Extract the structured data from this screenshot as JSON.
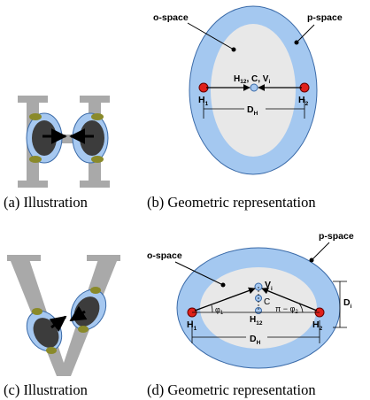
{
  "panels": {
    "a": {
      "caption": "(a) Illustration"
    },
    "b": {
      "caption": "(b) Geometric representation",
      "o_space": "o-space",
      "p_space": "p-space",
      "h1": "H",
      "h1_sub": "1",
      "h2": "H",
      "h2_sub": "2",
      "center_main": "H",
      "center_sub": "12",
      "center_rest": ", C, V",
      "center_rest_sub": "i",
      "dh": "D",
      "dh_sub": "H"
    },
    "c": {
      "caption": "(c) Illustration"
    },
    "d": {
      "caption": "(d) Geometric representation",
      "o_space": "o-space",
      "p_space": "p-space",
      "vi": "V",
      "vi_sub": "i",
      "c": "C",
      "h12": "H",
      "h12_sub": "12",
      "h1": "H",
      "h1_sub": "1",
      "h2": "H",
      "h2_sub": "2",
      "phi1": "φ",
      "phi1_sub": "1",
      "pi_minus_phi2": "π − φ",
      "pi_minus_phi2_sub": "2",
      "di": "D",
      "di_sub": "i",
      "dh": "D",
      "dh_sub": "H"
    }
  },
  "colors": {
    "p_space": "#a4c8f0",
    "p_space_stroke": "#3a6aa8",
    "o_space": "#e8e8e8",
    "marker_red": "#e0201a",
    "marker_blue": "#a6c8f0",
    "letter_gray": "#a9a9a9",
    "head_dark": "#3c3c3c",
    "ear_green": "#8a8a2a"
  }
}
